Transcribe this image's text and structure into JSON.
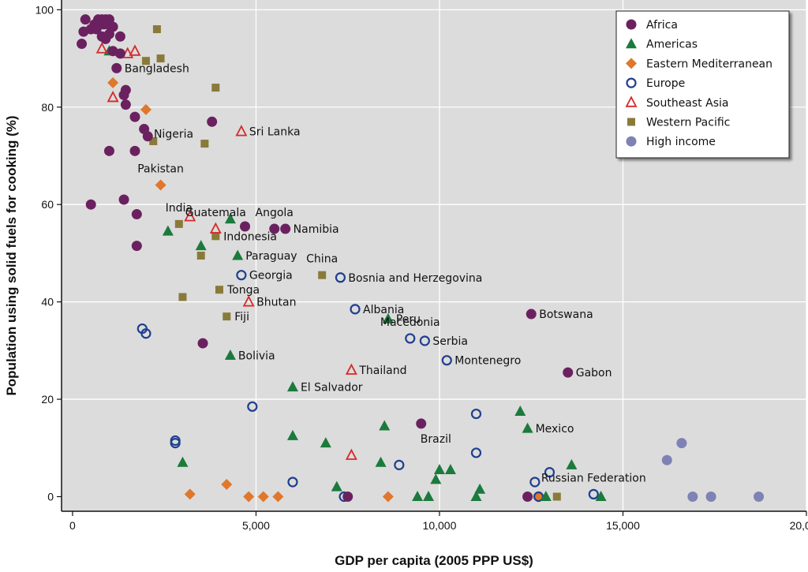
{
  "chart_data": {
    "type": "scatter",
    "title": "",
    "xlabel": "GDP per capita (2005 PPP US$)",
    "ylabel": "Population using solid fuels for cooking (%)",
    "xlim": [
      -300,
      20000
    ],
    "ylim": [
      -3,
      102
    ],
    "x_ticks": [
      0,
      5000,
      10000,
      15000,
      20000
    ],
    "x_tick_labels": [
      "0",
      "5,000",
      "10,000",
      "15,000",
      "20,000"
    ],
    "y_ticks": [
      0,
      20,
      40,
      60,
      80,
      100
    ],
    "y_tick_labels": [
      "0",
      "20",
      "40",
      "60",
      "80",
      "100"
    ],
    "grid": true,
    "legend_position": "top-right",
    "series": [
      {
        "name": "Africa",
        "marker": "circle-filled",
        "color": "#6b2160",
        "points": [
          [
            700,
            98
          ],
          [
            800,
            98
          ],
          [
            900,
            98
          ],
          [
            1000,
            98
          ],
          [
            350,
            98
          ],
          [
            600,
            97
          ],
          [
            750,
            97
          ],
          [
            850,
            97
          ],
          [
            950,
            97
          ],
          [
            1100,
            96.5
          ],
          [
            500,
            96
          ],
          [
            650,
            96
          ],
          [
            300,
            95.5
          ],
          [
            1000,
            95
          ],
          [
            800,
            94.5
          ],
          [
            1300,
            94.5
          ],
          [
            900,
            94
          ],
          [
            250,
            93
          ],
          [
            1100,
            91.5
          ],
          [
            1300,
            91
          ],
          [
            1200,
            88
          ],
          [
            1450,
            83.5
          ],
          [
            1400,
            82.5
          ],
          [
            1450,
            80.5
          ],
          [
            1700,
            78
          ],
          [
            1950,
            75.5
          ],
          [
            2050,
            74
          ],
          [
            3800,
            77
          ],
          [
            1000,
            71
          ],
          [
            1700,
            71
          ],
          [
            500,
            60
          ],
          [
            1400,
            61
          ],
          [
            1750,
            58
          ],
          [
            4700,
            55.5
          ],
          [
            5500,
            55
          ],
          [
            5800,
            55
          ],
          [
            1750,
            51.5
          ],
          [
            3550,
            31.5
          ],
          [
            9500,
            15
          ],
          [
            12500,
            37.5
          ],
          [
            13500,
            25.5
          ],
          [
            12400,
            0
          ],
          [
            7500,
            0
          ]
        ]
      },
      {
        "name": "Americas",
        "marker": "triangle-filled",
        "color": "#1b7a3c",
        "points": [
          [
            1000,
            91.5
          ],
          [
            2600,
            54.5
          ],
          [
            3500,
            51.5
          ],
          [
            4300,
            57
          ],
          [
            4500,
            49.5
          ],
          [
            4300,
            29
          ],
          [
            6000,
            22.5
          ],
          [
            3000,
            7
          ],
          [
            6000,
            12.5
          ],
          [
            6900,
            11
          ],
          [
            7200,
            2
          ],
          [
            8400,
            7
          ],
          [
            8500,
            14.5
          ],
          [
            8600,
            36.5
          ],
          [
            9400,
            0
          ],
          [
            9700,
            0
          ],
          [
            9900,
            3.5
          ],
          [
            10000,
            5.5
          ],
          [
            10300,
            5.5
          ],
          [
            11000,
            0
          ],
          [
            11100,
            1.5
          ],
          [
            12200,
            17.5
          ],
          [
            12400,
            14
          ],
          [
            12900,
            0
          ],
          [
            13600,
            6.5
          ],
          [
            14400,
            0
          ]
        ]
      },
      {
        "name": "Eastern Mediterranean",
        "marker": "diamond-filled",
        "color": "#e0772b",
        "points": [
          [
            1100,
            85
          ],
          [
            2000,
            79.5
          ],
          [
            2400,
            64
          ],
          [
            3200,
            0.5
          ],
          [
            4200,
            2.5
          ],
          [
            4800,
            0
          ],
          [
            5200,
            0
          ],
          [
            5600,
            0
          ],
          [
            8600,
            0
          ],
          [
            12700,
            0
          ]
        ]
      },
      {
        "name": "Europe",
        "marker": "circle-open",
        "color": "#1f3f8f",
        "points": [
          [
            4600,
            45.5
          ],
          [
            7300,
            45
          ],
          [
            7700,
            38.5
          ],
          [
            1900,
            34.5
          ],
          [
            2000,
            33.5
          ],
          [
            9200,
            32.5
          ],
          [
            9600,
            32
          ],
          [
            10200,
            28
          ],
          [
            4900,
            18.5
          ],
          [
            2800,
            11.5
          ],
          [
            2800,
            11
          ],
          [
            6000,
            3
          ],
          [
            7400,
            0
          ],
          [
            8900,
            6.5
          ],
          [
            11000,
            17
          ],
          [
            11000,
            9
          ],
          [
            12600,
            3
          ],
          [
            13000,
            5
          ],
          [
            14200,
            0.5
          ],
          [
            12700,
            0
          ]
        ]
      },
      {
        "name": "Southeast Asia",
        "marker": "triangle-open",
        "color": "#d42a2a",
        "points": [
          [
            800,
            92
          ],
          [
            1500,
            91
          ],
          [
            1700,
            91.5
          ],
          [
            1100,
            82
          ],
          [
            4600,
            75
          ],
          [
            3200,
            57.5
          ],
          [
            3900,
            55
          ],
          [
            4800,
            40
          ],
          [
            7600,
            26
          ],
          [
            7600,
            8.5
          ]
        ]
      },
      {
        "name": "Western Pacific",
        "marker": "square-filled",
        "color": "#8a7a3a",
        "points": [
          [
            2300,
            96
          ],
          [
            2000,
            89.5
          ],
          [
            2400,
            90
          ],
          [
            3900,
            84
          ],
          [
            2200,
            73
          ],
          [
            3600,
            72.5
          ],
          [
            2900,
            56
          ],
          [
            3900,
            53.5
          ],
          [
            3500,
            49.5
          ],
          [
            6800,
            45.5
          ],
          [
            3000,
            41
          ],
          [
            4000,
            42.5
          ],
          [
            4200,
            37
          ],
          [
            13200,
            0
          ]
        ]
      },
      {
        "name": "High income",
        "marker": "circle-filled",
        "color": "#7e82b4",
        "points": [
          [
            16200,
            7.5
          ],
          [
            16600,
            11
          ],
          [
            16900,
            0
          ],
          [
            17400,
            0
          ],
          [
            18700,
            0
          ]
        ]
      }
    ],
    "annotations": [
      {
        "text": "Bangladesh",
        "x": 1200,
        "y": 88
      },
      {
        "text": "Nigeria",
        "x": 2000,
        "y": 74.5
      },
      {
        "text": "Sri Lanka",
        "x": 4600,
        "y": 75
      },
      {
        "text": "Pakistan",
        "x": 2400,
        "y": 64,
        "anchor": "above"
      },
      {
        "text": "India",
        "x": 2900,
        "y": 56,
        "anchor": "above"
      },
      {
        "text": "Guatemala",
        "x": 3900,
        "y": 55,
        "anchor": "above"
      },
      {
        "text": "Angola",
        "x": 5500,
        "y": 55,
        "anchor": "above"
      },
      {
        "text": "Namibia",
        "x": 5800,
        "y": 55
      },
      {
        "text": "Indonesia",
        "x": 3900,
        "y": 53.5
      },
      {
        "text": "Paraguay",
        "x": 4500,
        "y": 49.5
      },
      {
        "text": "China",
        "x": 6800,
        "y": 45.5,
        "anchor": "above"
      },
      {
        "text": "Georgia",
        "x": 4600,
        "y": 45.5
      },
      {
        "text": "Bosnia and Herzegovina",
        "x": 7300,
        "y": 45
      },
      {
        "text": "Tonga",
        "x": 4000,
        "y": 42.5
      },
      {
        "text": "Bhutan",
        "x": 4800,
        "y": 40
      },
      {
        "text": "Albania",
        "x": 7700,
        "y": 38.5
      },
      {
        "text": "Fiji",
        "x": 4200,
        "y": 37
      },
      {
        "text": "Peru",
        "x": 8600,
        "y": 36.5
      },
      {
        "text": "Botswana",
        "x": 12500,
        "y": 37.5
      },
      {
        "text": "Macedonia",
        "x": 9200,
        "y": 32.5,
        "anchor": "above"
      },
      {
        "text": "Serbia",
        "x": 9600,
        "y": 32
      },
      {
        "text": "Bolivia",
        "x": 4300,
        "y": 29
      },
      {
        "text": "Montenegro",
        "x": 10200,
        "y": 28
      },
      {
        "text": "Thailand",
        "x": 7600,
        "y": 26
      },
      {
        "text": "Gabon",
        "x": 13500,
        "y": 25.5
      },
      {
        "text": "El Salvador",
        "x": 6000,
        "y": 22.5
      },
      {
        "text": "Mexico",
        "x": 12400,
        "y": 14
      },
      {
        "text": "Brazil",
        "x": 9900,
        "y": 8.5,
        "anchor": "above"
      },
      {
        "text": "Russian Federation",
        "x": 14200,
        "y": 0.5,
        "anchor": "above"
      }
    ]
  }
}
